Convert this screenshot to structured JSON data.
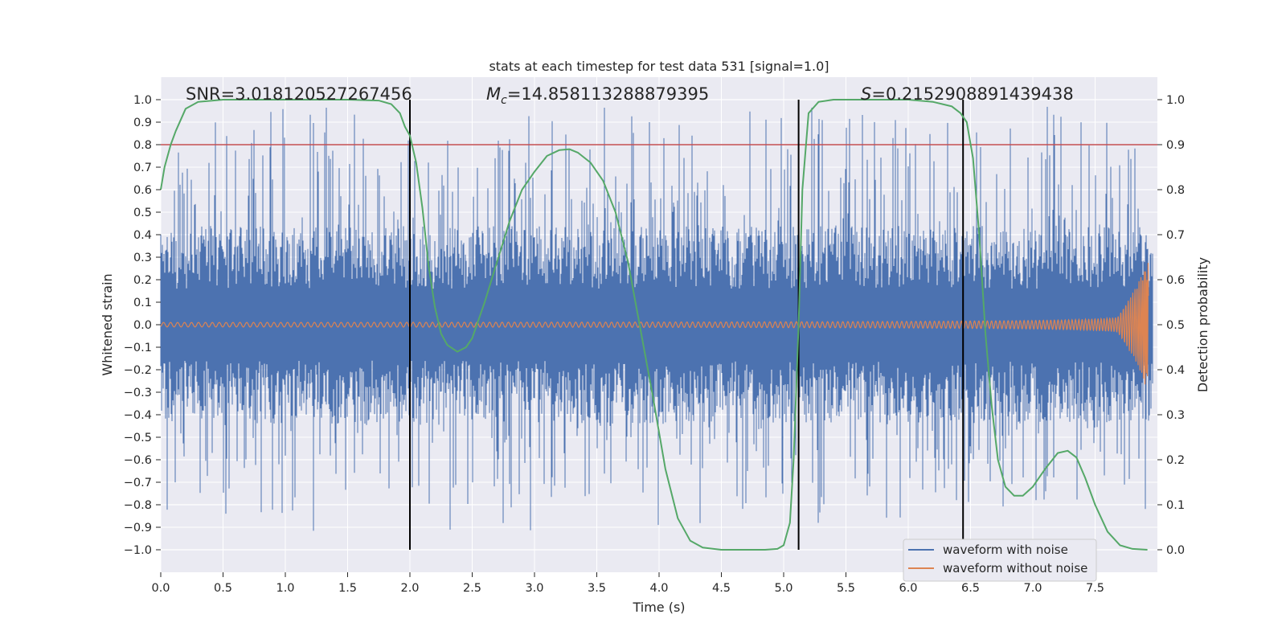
{
  "chart_data": {
    "type": "line",
    "title": "stats at each timestep for test data 531 [signal=1.0]",
    "xlabel": "Time (s)",
    "ylabel_left": "Whitened strain",
    "ylabel_right": "Detection probability",
    "xlim": [
      0.0,
      8.0
    ],
    "ylim_left": [
      -1.1,
      1.1
    ],
    "ylim_right": [
      -0.05,
      1.05
    ],
    "x_ticks": [
      0.0,
      0.5,
      1.0,
      1.5,
      2.0,
      2.5,
      3.0,
      3.5,
      4.0,
      4.5,
      5.0,
      5.5,
      6.0,
      6.5,
      7.0,
      7.5
    ],
    "x_tick_labels": [
      "0.0",
      "0.5",
      "1.0",
      "1.5",
      "2.0",
      "2.5",
      "3.0",
      "3.5",
      "4.0",
      "4.5",
      "5.0",
      "5.5",
      "6.0",
      "6.5",
      "7.0",
      "7.5"
    ],
    "y_left_ticks": [
      1.0,
      0.9,
      0.8,
      0.7,
      0.6,
      0.5,
      0.4,
      0.3,
      0.2,
      0.1,
      0.0,
      -0.1,
      -0.2,
      -0.3,
      -0.4,
      -0.5,
      -0.6,
      -0.7,
      -0.8,
      -0.9,
      -1.0
    ],
    "y_left_tick_labels": [
      "1.0",
      "0.9",
      "0.8",
      "0.7",
      "0.6",
      "0.5",
      "0.4",
      "0.3",
      "0.2",
      "0.1",
      "0.0",
      "−0.1",
      "−0.2",
      "−0.3",
      "−0.4",
      "−0.5",
      "−0.6",
      "−0.7",
      "−0.8",
      "−0.9",
      "−1.0"
    ],
    "y_right_ticks": [
      1.0,
      0.9,
      0.8,
      0.7,
      0.6,
      0.5,
      0.4,
      0.3,
      0.2,
      0.1,
      0.0
    ],
    "y_right_tick_labels": [
      "1.0",
      "0.9",
      "0.8",
      "0.7",
      "0.6",
      "0.5",
      "0.4",
      "0.3",
      "0.2",
      "0.1",
      "0.0"
    ],
    "annotations": {
      "snr": "SNR=3.018120527267456",
      "mc_symbol": "M",
      "mc_subscript": "c",
      "mc_value": "=14.858113288879395",
      "s_symbol": "S",
      "s_value": "=0.2152908891439438"
    },
    "threshold": {
      "value": 0.9,
      "axis": "right"
    },
    "vertical_lines": [
      2.0,
      5.12,
      6.44
    ],
    "series": [
      {
        "name": "waveform with noise",
        "axis": "left",
        "color": "#4c72b0",
        "description": "noisy whitened strain, amplitude up to about 1"
      },
      {
        "name": "waveform without noise",
        "axis": "left",
        "color": "#dd8452",
        "description": "chirp signal growing to about 0.28 near 7.92 s"
      },
      {
        "name": "detection probability",
        "axis": "right",
        "color": "#55a868",
        "x": [
          0.0,
          0.03,
          0.08,
          0.12,
          0.2,
          0.3,
          0.5,
          1.0,
          1.5,
          1.75,
          1.85,
          1.92,
          1.96,
          2.0,
          2.05,
          2.1,
          2.15,
          2.2,
          2.25,
          2.3,
          2.38,
          2.45,
          2.5,
          2.6,
          2.7,
          2.8,
          2.9,
          3.0,
          3.1,
          3.2,
          3.28,
          3.35,
          3.45,
          3.55,
          3.65,
          3.75,
          3.85,
          3.95,
          4.05,
          4.15,
          4.25,
          4.35,
          4.5,
          4.7,
          4.85,
          4.95,
          5.0,
          5.05,
          5.08,
          5.12,
          5.15,
          5.2,
          5.28,
          5.4,
          5.7,
          6.0,
          6.2,
          6.35,
          6.42,
          6.47,
          6.52,
          6.57,
          6.62,
          6.67,
          6.72,
          6.78,
          6.85,
          6.92,
          7.0,
          7.1,
          7.2,
          7.28,
          7.35,
          7.42,
          7.5,
          7.6,
          7.7,
          7.8,
          7.92
        ],
        "y": [
          0.8,
          0.85,
          0.9,
          0.93,
          0.98,
          0.995,
          1.0,
          1.0,
          1.0,
          0.998,
          0.99,
          0.97,
          0.94,
          0.92,
          0.86,
          0.76,
          0.63,
          0.54,
          0.48,
          0.455,
          0.44,
          0.45,
          0.47,
          0.55,
          0.64,
          0.73,
          0.8,
          0.84,
          0.875,
          0.888,
          0.89,
          0.882,
          0.86,
          0.82,
          0.75,
          0.64,
          0.49,
          0.34,
          0.18,
          0.07,
          0.02,
          0.005,
          0.0,
          0.0,
          0.0,
          0.002,
          0.01,
          0.06,
          0.2,
          0.5,
          0.8,
          0.97,
          0.995,
          1.0,
          1.0,
          1.0,
          0.995,
          0.985,
          0.97,
          0.95,
          0.87,
          0.7,
          0.48,
          0.32,
          0.2,
          0.14,
          0.12,
          0.12,
          0.14,
          0.18,
          0.215,
          0.22,
          0.205,
          0.16,
          0.1,
          0.04,
          0.01,
          0.002,
          0.0
        ]
      }
    ],
    "legend": {
      "location": "lower-right",
      "entries": [
        "waveform with noise",
        "waveform without noise"
      ]
    }
  },
  "colors": {
    "plot_bg": "#eaeaf2",
    "grid": "#ffffff",
    "noise": "#4c72b0",
    "clean": "#dd8452",
    "prob": "#55a868",
    "threshold": "#c44e52",
    "vline": "#000000"
  }
}
